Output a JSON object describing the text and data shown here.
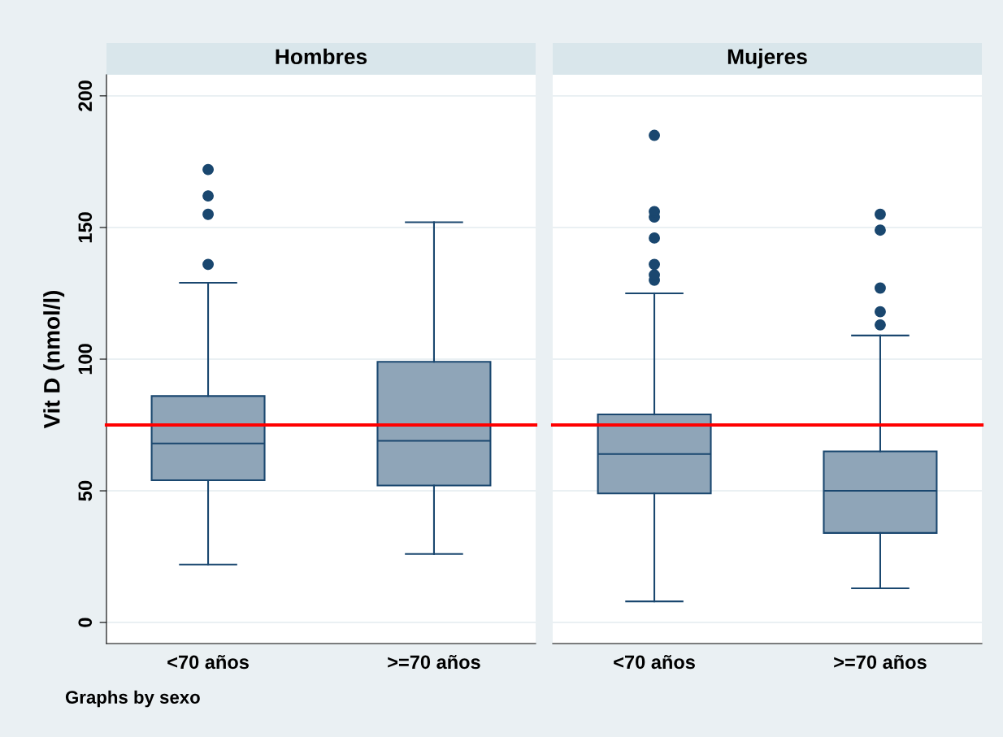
{
  "chart_data": [
    {
      "type": "box",
      "title": "Hombres",
      "ylabel": "Vit D (nmol/l)",
      "categories": [
        "<70 años",
        ">=70 años"
      ],
      "boxes": [
        {
          "low": 22,
          "q1": 54,
          "median": 68,
          "q3": 86,
          "high": 129,
          "outliers": [
            136,
            155,
            162,
            172
          ]
        },
        {
          "low": 26,
          "q1": 52,
          "median": 69,
          "q3": 99,
          "high": 152
        }
      ],
      "color": "#8fa5b8",
      "ylim": [
        -8,
        208
      ],
      "yticks": [
        0,
        50,
        100,
        150,
        200
      ],
      "grid": "y",
      "ref_lines": [
        {
          "axis": "y",
          "value": 75,
          "color": "#ff0000"
        }
      ],
      "annotations": [
        "Graphs by sexo"
      ]
    },
    {
      "type": "box",
      "title": "Mujeres",
      "categories": [
        "<70 años",
        ">=70 años"
      ],
      "boxes": [
        {
          "low": 8,
          "q1": 49,
          "median": 64,
          "q3": 79,
          "high": 125,
          "outliers": [
            130,
            132,
            136,
            146,
            154,
            156,
            185
          ]
        },
        {
          "low": 13,
          "q1": 34,
          "median": 50,
          "q3": 65,
          "high": 109,
          "outliers": [
            113,
            118,
            127,
            149,
            155
          ]
        }
      ],
      "color": "#8fa5b8",
      "ylim": [
        -8,
        208
      ],
      "yticks": [
        0,
        50,
        100,
        150,
        200
      ],
      "grid": "y",
      "tick_labels": "x",
      "ref_lines": [
        {
          "axis": "y",
          "value": 75,
          "color": "#ff0000"
        }
      ]
    }
  ]
}
